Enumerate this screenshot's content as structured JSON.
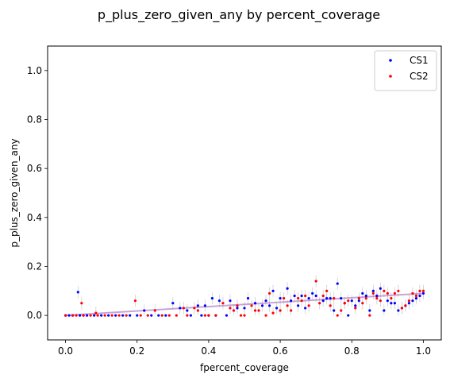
{
  "chart_data": {
    "type": "scatter",
    "title": "p_plus_zero_given_any by percent_coverage",
    "xlabel": "fpercent_coverage",
    "ylabel": "p_plus_zero_given_any",
    "xlim": [
      -0.05,
      1.05
    ],
    "ylim": [
      -0.1,
      1.1
    ],
    "xticks": [
      "0.0",
      "0.2",
      "0.4",
      "0.6",
      "0.8",
      "1.0"
    ],
    "xtick_values": [
      0.0,
      0.2,
      0.4,
      0.6,
      0.8,
      1.0
    ],
    "yticks": [
      "0.0",
      "0.2",
      "0.4",
      "0.6",
      "0.8",
      "1.0"
    ],
    "ytick_values": [
      0.0,
      0.2,
      0.4,
      0.6,
      0.8,
      1.0
    ],
    "grid": false,
    "legend_position": "top-right",
    "trend_line": {
      "x": [
        0.0,
        1.0
      ],
      "y": [
        0.0,
        0.09
      ],
      "color": "#9b59b6"
    },
    "series": [
      {
        "name": "CS1",
        "color": "#0000ff",
        "points": [
          [
            0.0,
            0.0
          ],
          [
            0.01,
            0.0
          ],
          [
            0.02,
            0.0
          ],
          [
            0.035,
            0.095
          ],
          [
            0.04,
            0.0
          ],
          [
            0.05,
            0.0
          ],
          [
            0.06,
            0.0
          ],
          [
            0.08,
            0.0
          ],
          [
            0.1,
            0.0
          ],
          [
            0.12,
            0.0
          ],
          [
            0.14,
            0.0
          ],
          [
            0.16,
            0.0
          ],
          [
            0.18,
            0.0
          ],
          [
            0.2,
            0.0
          ],
          [
            0.22,
            0.02
          ],
          [
            0.24,
            0.0
          ],
          [
            0.26,
            0.0
          ],
          [
            0.28,
            0.0
          ],
          [
            0.3,
            0.05
          ],
          [
            0.32,
            0.03
          ],
          [
            0.34,
            0.02
          ],
          [
            0.35,
            0.0
          ],
          [
            0.37,
            0.04
          ],
          [
            0.38,
            0.0
          ],
          [
            0.39,
            0.04
          ],
          [
            0.4,
            0.0
          ],
          [
            0.41,
            0.07
          ],
          [
            0.42,
            0.0
          ],
          [
            0.43,
            0.06
          ],
          [
            0.45,
            0.0
          ],
          [
            0.46,
            0.06
          ],
          [
            0.48,
            0.03
          ],
          [
            0.5,
            0.03
          ],
          [
            0.51,
            0.07
          ],
          [
            0.53,
            0.05
          ],
          [
            0.55,
            0.04
          ],
          [
            0.56,
            0.06
          ],
          [
            0.57,
            0.04
          ],
          [
            0.58,
            0.1
          ],
          [
            0.59,
            0.03
          ],
          [
            0.6,
            0.07
          ],
          [
            0.62,
            0.11
          ],
          [
            0.63,
            0.06
          ],
          [
            0.64,
            0.08
          ],
          [
            0.65,
            0.04
          ],
          [
            0.66,
            0.08
          ],
          [
            0.67,
            0.03
          ],
          [
            0.68,
            0.07
          ],
          [
            0.69,
            0.09
          ],
          [
            0.7,
            0.08
          ],
          [
            0.72,
            0.06
          ],
          [
            0.73,
            0.07
          ],
          [
            0.74,
            0.07
          ],
          [
            0.75,
            0.02
          ],
          [
            0.76,
            0.13
          ],
          [
            0.77,
            0.07
          ],
          [
            0.78,
            0.05
          ],
          [
            0.79,
            0.0
          ],
          [
            0.8,
            0.06
          ],
          [
            0.81,
            0.04
          ],
          [
            0.82,
            0.06
          ],
          [
            0.83,
            0.09
          ],
          [
            0.84,
            0.08
          ],
          [
            0.85,
            0.02
          ],
          [
            0.86,
            0.1
          ],
          [
            0.87,
            0.08
          ],
          [
            0.88,
            0.11
          ],
          [
            0.89,
            0.02
          ],
          [
            0.9,
            0.06
          ],
          [
            0.91,
            0.05
          ],
          [
            0.92,
            0.05
          ],
          [
            0.93,
            0.02
          ],
          [
            0.94,
            0.03
          ],
          [
            0.95,
            0.04
          ],
          [
            0.96,
            0.05
          ],
          [
            0.97,
            0.06
          ],
          [
            0.98,
            0.07
          ],
          [
            0.99,
            0.08
          ],
          [
            1.0,
            0.09
          ]
        ]
      },
      {
        "name": "CS2",
        "color": "#ff0000",
        "points": [
          [
            0.0,
            0.0
          ],
          [
            0.02,
            0.0
          ],
          [
            0.03,
            0.0
          ],
          [
            0.045,
            0.05
          ],
          [
            0.05,
            0.0
          ],
          [
            0.07,
            0.0
          ],
          [
            0.085,
            0.01
          ],
          [
            0.09,
            0.0
          ],
          [
            0.11,
            0.0
          ],
          [
            0.13,
            0.0
          ],
          [
            0.15,
            0.0
          ],
          [
            0.17,
            0.0
          ],
          [
            0.195,
            0.06
          ],
          [
            0.21,
            0.0
          ],
          [
            0.23,
            0.0
          ],
          [
            0.25,
            0.02
          ],
          [
            0.27,
            0.0
          ],
          [
            0.29,
            0.0
          ],
          [
            0.31,
            0.0
          ],
          [
            0.33,
            0.03
          ],
          [
            0.34,
            0.0
          ],
          [
            0.36,
            0.03
          ],
          [
            0.37,
            0.02
          ],
          [
            0.39,
            0.0
          ],
          [
            0.4,
            0.0
          ],
          [
            0.42,
            0.0
          ],
          [
            0.44,
            0.05
          ],
          [
            0.46,
            0.03
          ],
          [
            0.47,
            0.02
          ],
          [
            0.48,
            0.04
          ],
          [
            0.49,
            0.0
          ],
          [
            0.5,
            0.0
          ],
          [
            0.52,
            0.04
          ],
          [
            0.53,
            0.02
          ],
          [
            0.54,
            0.02
          ],
          [
            0.56,
            0.0
          ],
          [
            0.57,
            0.09
          ],
          [
            0.58,
            0.01
          ],
          [
            0.6,
            0.02
          ],
          [
            0.61,
            0.07
          ],
          [
            0.62,
            0.04
          ],
          [
            0.63,
            0.02
          ],
          [
            0.65,
            0.07
          ],
          [
            0.66,
            0.06
          ],
          [
            0.67,
            0.08
          ],
          [
            0.68,
            0.04
          ],
          [
            0.7,
            0.14
          ],
          [
            0.71,
            0.05
          ],
          [
            0.72,
            0.08
          ],
          [
            0.73,
            0.1
          ],
          [
            0.74,
            0.04
          ],
          [
            0.75,
            0.07
          ],
          [
            0.76,
            0.0
          ],
          [
            0.77,
            0.02
          ],
          [
            0.78,
            0.05
          ],
          [
            0.79,
            0.06
          ],
          [
            0.81,
            0.03
          ],
          [
            0.82,
            0.07
          ],
          [
            0.83,
            0.05
          ],
          [
            0.84,
            0.07
          ],
          [
            0.85,
            0.0
          ],
          [
            0.86,
            0.09
          ],
          [
            0.87,
            0.07
          ],
          [
            0.88,
            0.06
          ],
          [
            0.89,
            0.1
          ],
          [
            0.9,
            0.09
          ],
          [
            0.91,
            0.07
          ],
          [
            0.92,
            0.09
          ],
          [
            0.93,
            0.1
          ],
          [
            0.94,
            0.03
          ],
          [
            0.95,
            0.04
          ],
          [
            0.96,
            0.06
          ],
          [
            0.97,
            0.09
          ],
          [
            0.98,
            0.08
          ],
          [
            0.99,
            0.1
          ],
          [
            1.0,
            0.1
          ]
        ]
      }
    ]
  }
}
